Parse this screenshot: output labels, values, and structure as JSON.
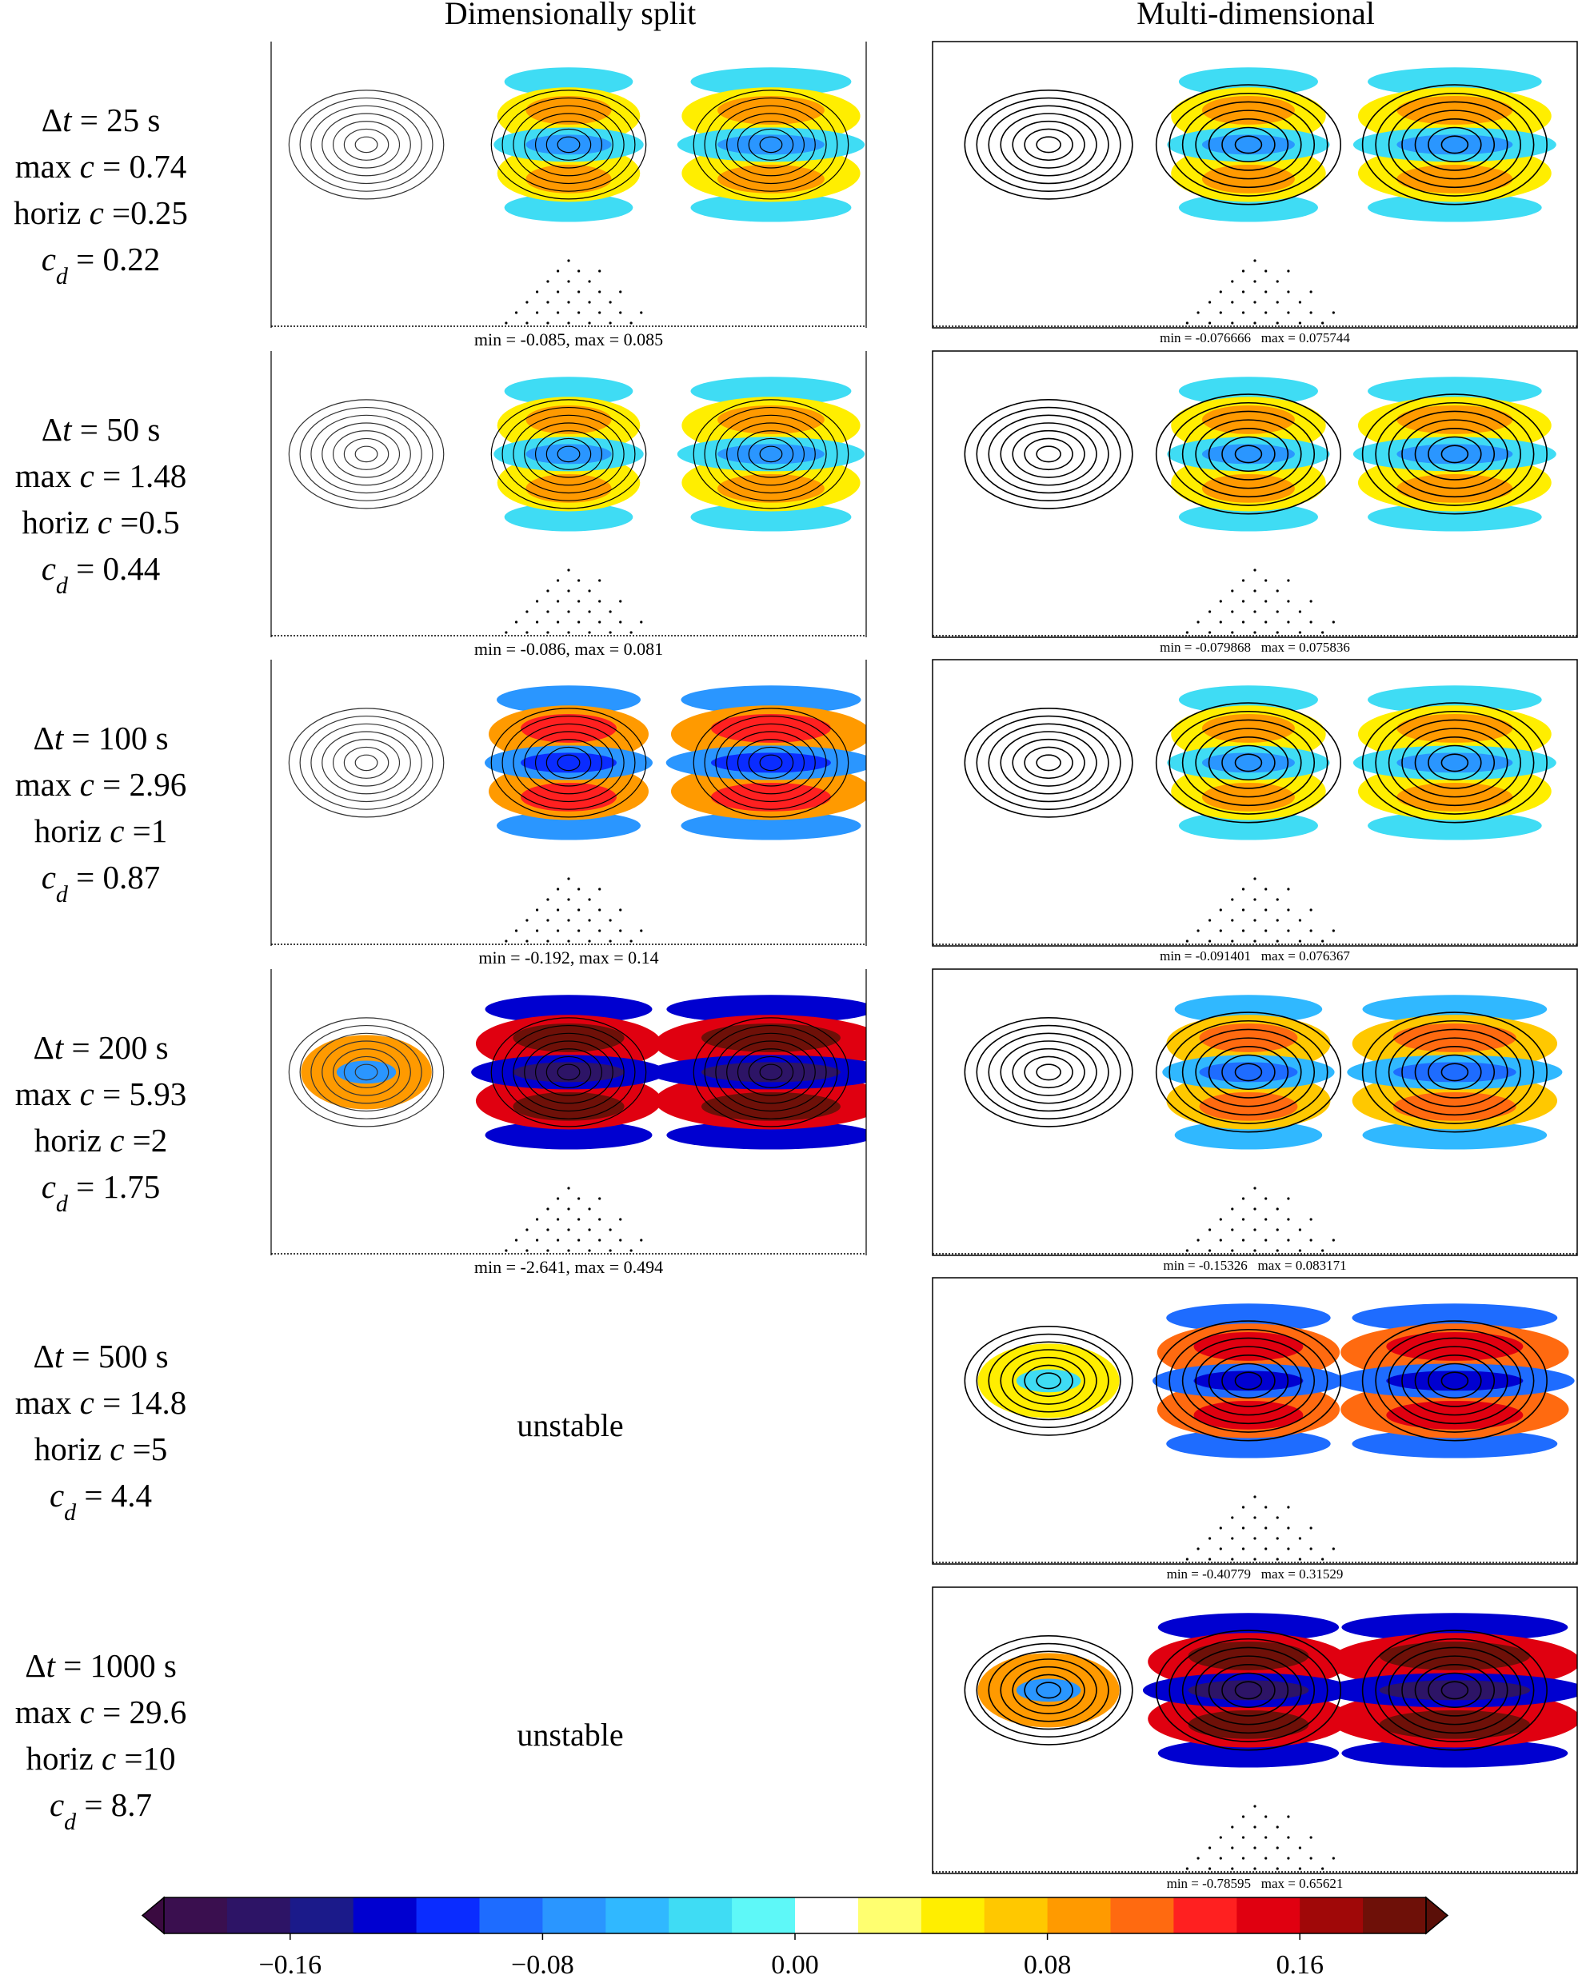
{
  "columns": [
    "Dimensionally split",
    "Multi-dimensional"
  ],
  "rows": [
    {
      "dt": {
        "pre": "Δ",
        "sym": "t",
        "post": " = 25 s"
      },
      "max_c": {
        "pre": "max ",
        "sym": "c",
        "post": " = 0.74"
      },
      "horiz_c": {
        "pre": "horiz ",
        "sym": "c",
        "post": " =0.25"
      },
      "c_d": {
        "sym": "c",
        "sub": "d",
        "post": " = 0.22"
      },
      "left": {
        "caption": "min = -0.085, max = 0.085"
      },
      "right": {
        "caption": "min = -0.076666   max = 0.075744"
      }
    },
    {
      "dt": {
        "pre": "Δ",
        "sym": "t",
        "post": " = 50 s"
      },
      "max_c": {
        "pre": "max ",
        "sym": "c",
        "post": " = 1.48"
      },
      "horiz_c": {
        "pre": "horiz ",
        "sym": "c",
        "post": " =0.5"
      },
      "c_d": {
        "sym": "c",
        "sub": "d",
        "post": " = 0.44"
      },
      "left": {
        "caption": "min = -0.086, max = 0.081"
      },
      "right": {
        "caption": "min = -0.079868   max = 0.075836"
      }
    },
    {
      "dt": {
        "pre": "Δ",
        "sym": "t",
        "post": " = 100 s"
      },
      "max_c": {
        "pre": "max ",
        "sym": "c",
        "post": " = 2.96"
      },
      "horiz_c": {
        "pre": "horiz ",
        "sym": "c",
        "post": " =1"
      },
      "c_d": {
        "sym": "c",
        "sub": "d",
        "post": " = 0.87"
      },
      "left": {
        "caption": "min = -0.192, max = 0.14"
      },
      "right": {
        "caption": "min = -0.091401   max = 0.076367"
      }
    },
    {
      "dt": {
        "pre": "Δ",
        "sym": "t",
        "post": " = 200 s"
      },
      "max_c": {
        "pre": "max ",
        "sym": "c",
        "post": " = 5.93"
      },
      "horiz_c": {
        "pre": "horiz ",
        "sym": "c",
        "post": " =2"
      },
      "c_d": {
        "sym": "c",
        "sub": "d",
        "post": " = 1.75"
      },
      "left": {
        "caption": "min = -2.641, max = 0.494"
      },
      "right": {
        "caption": "min = -0.15326   max = 0.083171"
      }
    },
    {
      "dt": {
        "pre": "Δ",
        "sym": "t",
        "post": " = 500 s"
      },
      "max_c": {
        "pre": "max ",
        "sym": "c",
        "post": " = 14.8"
      },
      "horiz_c": {
        "pre": "horiz ",
        "sym": "c",
        "post": " =5"
      },
      "c_d": {
        "sym": "c",
        "sub": "d",
        "post": " = 4.4"
      },
      "left": {
        "status": "unstable"
      },
      "right": {
        "caption": "min = -0.40779   max = 0.31529"
      }
    },
    {
      "dt": {
        "pre": "Δ",
        "sym": "t",
        "post": " = 1000 s"
      },
      "max_c": {
        "pre": "max ",
        "sym": "c",
        "post": " = 29.6"
      },
      "horiz_c": {
        "pre": "horiz ",
        "sym": "c",
        "post": " =10"
      },
      "c_d": {
        "sym": "c",
        "sub": "d",
        "post": " = 8.7"
      },
      "left": {
        "status": "unstable"
      },
      "right": {
        "caption": "min = -0.78595   max = 0.65621"
      }
    }
  ],
  "colorbar": {
    "lim": [
      -0.2,
      0.2
    ],
    "colors": [
      "#3a0f4f",
      "#2d1466",
      "#1b1a8a",
      "#0000d0",
      "#0a2cff",
      "#1e6cff",
      "#2a96ff",
      "#30b8ff",
      "#3fdcf4",
      "#5ef8f8",
      "#ffffff",
      "#ffff70",
      "#ffee00",
      "#ffc800",
      "#ff9a00",
      "#ff6a10",
      "#ff2020",
      "#e00010",
      "#a00808",
      "#6e1008"
    ],
    "under": "#3a0a40",
    "over": "#5a0f08",
    "ticks": [
      {
        "value": -0.16,
        "label": "−0.16"
      },
      {
        "value": -0.08,
        "label": "−0.08"
      },
      {
        "value": 0,
        "label": "0.00"
      },
      {
        "value": 0.08,
        "label": "0.08"
      },
      {
        "value": 0.16,
        "label": "0.16"
      }
    ]
  }
}
